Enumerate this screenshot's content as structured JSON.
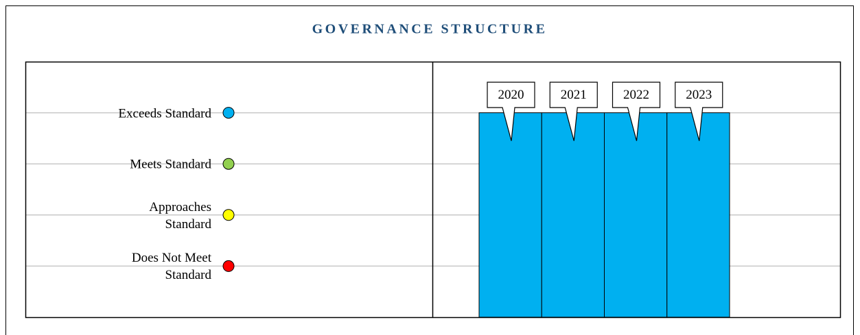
{
  "chart_data": {
    "type": "bar",
    "title": "GOVERNANCE STRUCTURE",
    "categories": [
      "2020",
      "2021",
      "2022",
      "2023"
    ],
    "values": [
      4,
      4,
      4,
      4
    ],
    "color": "#00b0f0",
    "ylim": [
      0,
      5
    ],
    "yticks": [
      {
        "value": 1,
        "label": "Does Not Meet\nStandard"
      },
      {
        "value": 2,
        "label": "Approaches\nStandard"
      },
      {
        "value": 3,
        "label": "Meets Standard"
      },
      {
        "value": 4,
        "label": "Exceeds Standard"
      }
    ],
    "level_colors": [
      "#ff0000",
      "#ffff00",
      "#92d050",
      "#00b0f0"
    ],
    "grid": true
  }
}
